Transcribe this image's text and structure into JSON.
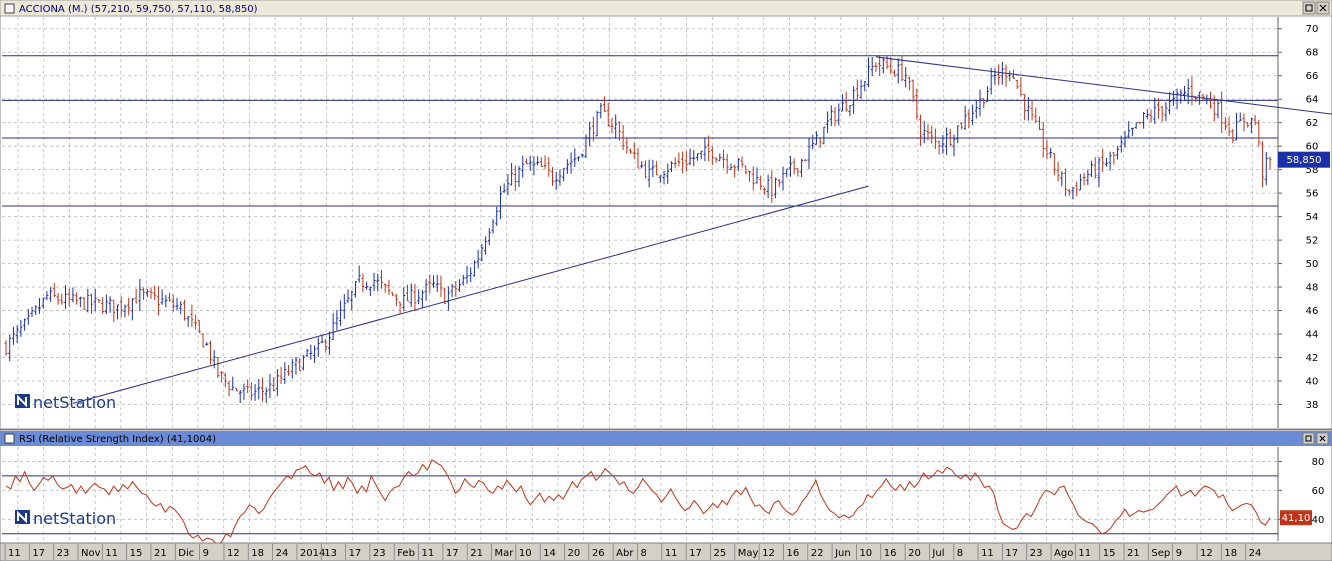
{
  "price_panel": {
    "title": "ACCIONA (M.) (57,210, 59,750, 57,110, 58,850)",
    "last_label": "58,850"
  },
  "rsi_panel": {
    "title": "RSI (Relative Strength Index) (41,1004)",
    "last_label": "41,10"
  },
  "watermark": "netStation",
  "date_axis": [
    "11",
    "17",
    "23",
    "Nov",
    "11",
    "15",
    "21",
    "Dic",
    "9",
    "12",
    "18",
    "24",
    "2014",
    "13",
    "17",
    "23",
    "Feb",
    "11",
    "17",
    "21",
    "Mar",
    "10",
    "14",
    "20",
    "26",
    "Abr",
    "8",
    "11",
    "17",
    "25",
    "May",
    "12",
    "16",
    "22",
    "Jun",
    "10",
    "16",
    "20",
    "Jul",
    "8",
    "11",
    "17",
    "23",
    "Ago",
    "11",
    "15",
    "21",
    "Sep",
    "9",
    "12",
    "18",
    "24"
  ],
  "chart_data": [
    {
      "type": "ohlc",
      "title": "ACCIONA (M.) (57,210, 59,750, 57,110, 58,850)",
      "ylim": [
        36,
        71
      ],
      "y_ticks": [
        38,
        40,
        42,
        44,
        46,
        48,
        50,
        52,
        54,
        56,
        58,
        60,
        62,
        64,
        66,
        68,
        70
      ],
      "last_close": 58.85,
      "colors": {
        "up": "#1a2fa8",
        "down": "#c0351a"
      },
      "horizontal_levels": [
        67.7,
        63.9,
        60.7,
        54.9
      ],
      "trendlines": [
        {
          "from": [
            18,
            38.1
          ],
          "to": [
            232,
            56.6
          ]
        },
        {
          "from": [
            234,
            67.6
          ],
          "to": [
            365,
            62.4
          ]
        }
      ],
      "price_path": [
        [
          0,
          43
        ],
        [
          6,
          45
        ],
        [
          11,
          47.2
        ],
        [
          17,
          46.8
        ],
        [
          23,
          46.6
        ],
        [
          30,
          46.3
        ],
        [
          36,
          47.3
        ],
        [
          42,
          46.8
        ],
        [
          47,
          46.2
        ],
        [
          50,
          44.8
        ],
        [
          54,
          43
        ],
        [
          57,
          40.6
        ],
        [
          61,
          39.4
        ],
        [
          65,
          38.9
        ],
        [
          69,
          39.2
        ],
        [
          72,
          39.6
        ],
        [
          76,
          40.8
        ],
        [
          80,
          41.8
        ],
        [
          84,
          42.6
        ],
        [
          87,
          44
        ],
        [
          91,
          46.2
        ],
        [
          95,
          48.4
        ],
        [
          99,
          48.6
        ],
        [
          103,
          47.5
        ],
        [
          107,
          46.8
        ],
        [
          111,
          47.4
        ],
        [
          115,
          48.1
        ],
        [
          118,
          47.2
        ],
        [
          120,
          47.6
        ],
        [
          124,
          48.8
        ],
        [
          127,
          50.6
        ],
        [
          130,
          53.2
        ],
        [
          133,
          55.8
        ],
        [
          137,
          57.5
        ],
        [
          140,
          58.4
        ],
        [
          144,
          58.1
        ],
        [
          147,
          57.4
        ],
        [
          150,
          58.3
        ],
        [
          154,
          59.2
        ],
        [
          157,
          61.2
        ],
        [
          160,
          62.8
        ],
        [
          164,
          61.7
        ],
        [
          168,
          59.3
        ],
        [
          173,
          57.6
        ],
        [
          178,
          58.2
        ],
        [
          182,
          58.7
        ],
        [
          186,
          59.1
        ],
        [
          190,
          59.6
        ],
        [
          194,
          58.8
        ],
        [
          198,
          58.2
        ],
        [
          202,
          57.1
        ],
        [
          206,
          56.3
        ],
        [
          210,
          57.6
        ],
        [
          214,
          58.8
        ],
        [
          218,
          60.4
        ],
        [
          222,
          62.4
        ],
        [
          226,
          63.7
        ],
        [
          230,
          65.3
        ],
        [
          234,
          67.1
        ],
        [
          238,
          66.6
        ],
        [
          242,
          66.1
        ],
        [
          246,
          61.4
        ],
        [
          250,
          60.3
        ],
        [
          254,
          60.8
        ],
        [
          258,
          62.4
        ],
        [
          262,
          63.8
        ],
        [
          266,
          65.9
        ],
        [
          270,
          66.6
        ],
        [
          274,
          63.6
        ],
        [
          278,
          60.8
        ],
        [
          282,
          58.2
        ],
        [
          286,
          56.1
        ],
        [
          290,
          57.4
        ],
        [
          294,
          58.2
        ],
        [
          298,
          59.1
        ],
        [
          302,
          60.8
        ],
        [
          306,
          62.3
        ],
        [
          310,
          63.1
        ],
        [
          314,
          63.7
        ],
        [
          318,
          64.8
        ],
        [
          322,
          64.2
        ],
        [
          326,
          63.1
        ],
        [
          330,
          61.1
        ],
        [
          333,
          62.3
        ],
        [
          336,
          62.1
        ],
        [
          338,
          57.8
        ],
        [
          340,
          58.85
        ]
      ]
    },
    {
      "type": "line",
      "title": "RSI (Relative Strength Index) (41,1004)",
      "ylim": [
        25,
        90
      ],
      "y_ticks": [
        40,
        60,
        80
      ],
      "reference_levels": [
        70,
        30
      ],
      "last_value": 41.1,
      "color": "#c0351a",
      "values": [
        63,
        61,
        70,
        66,
        73,
        65,
        60,
        64,
        69,
        67,
        70,
        64,
        61,
        62,
        64,
        58,
        63,
        58,
        62,
        65,
        62,
        61,
        57,
        63,
        59,
        64,
        61,
        66,
        62,
        58,
        57,
        52,
        49,
        51,
        45,
        49,
        47,
        43,
        38,
        30,
        27,
        29,
        25,
        27,
        26,
        23,
        24,
        30,
        28,
        36,
        42,
        45,
        50,
        48,
        44,
        47,
        53,
        58,
        62,
        66,
        70,
        68,
        74,
        75,
        77,
        72,
        70,
        72,
        65,
        69,
        60,
        66,
        61,
        69,
        65,
        58,
        63,
        59,
        70,
        64,
        58,
        53,
        59,
        62,
        63,
        69,
        73,
        70,
        72,
        78,
        74,
        81,
        79,
        77,
        72,
        66,
        58,
        61,
        68,
        64,
        62,
        67,
        65,
        60,
        58,
        63,
        61,
        67,
        63,
        59,
        63,
        55,
        50,
        54,
        58,
        52,
        56,
        53,
        57,
        54,
        60,
        66,
        62,
        68,
        70,
        73,
        67,
        70,
        75,
        72,
        69,
        64,
        66,
        60,
        58,
        62,
        68,
        64,
        60,
        57,
        52,
        56,
        61,
        55,
        50,
        46,
        48,
        53,
        49,
        44,
        47,
        51,
        48,
        53,
        50,
        56,
        60,
        57,
        62,
        55,
        49,
        50,
        46,
        44,
        51,
        53,
        48,
        45,
        43,
        46,
        52,
        56,
        61,
        67,
        57,
        51,
        46,
        44,
        41,
        43,
        41,
        43,
        48,
        50,
        57,
        55,
        60,
        63,
        68,
        63,
        60,
        64,
        60,
        66,
        62,
        66,
        72,
        68,
        70,
        74,
        72,
        76,
        74,
        70,
        68,
        71,
        67,
        72,
        68,
        62,
        63,
        58,
        45,
        37,
        35,
        33,
        34,
        40,
        44,
        42,
        48,
        55,
        60,
        59,
        57,
        62,
        63,
        56,
        50,
        43,
        40,
        38,
        37,
        34,
        30,
        31,
        34,
        39,
        42,
        47,
        42,
        44,
        46,
        45,
        46,
        47,
        50,
        53,
        57,
        60,
        63,
        56,
        58,
        60,
        56,
        60,
        63,
        62,
        60,
        55,
        57,
        50,
        46,
        48,
        50,
        51,
        50,
        45,
        38,
        36,
        41.1
      ]
    }
  ]
}
